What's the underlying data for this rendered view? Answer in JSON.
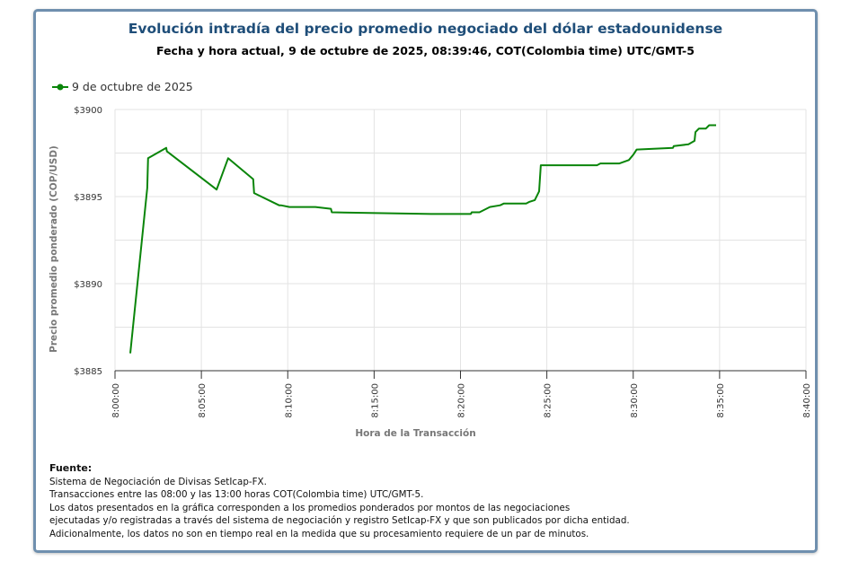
{
  "header": {
    "title": "Evolución intradía del precio promedio negociado del dólar estadounidense",
    "subtitle": "Fecha y hora actual, 9 de octubre de 2025, 08:39:46, COT(Colombia time) UTC/GMT-5"
  },
  "footer": {
    "heading": "Fuente:",
    "lines": [
      "Sistema de Negociación de Divisas SetIcap-FX.",
      "Transacciones entre las 08:00 y las 13:00 horas COT(Colombia time) UTC/GMT-5.",
      "Los datos presentados en la gráfica corresponden a los promedios ponderados por montos de las negociaciones",
      "ejecutadas y/o registradas a través del sistema de negociación y registro SetIcap-FX y que son publicados por dicha entidad.",
      "Adicionalmente, los datos no son en tiempo real en la medida que su procesamiento requiere de un par de minutos."
    ]
  },
  "chart_data": {
    "type": "line",
    "xlabel": "Hora de la Transacción",
    "ylabel": "Precio promedio ponderado (COP/USD)",
    "xlim": [
      "8:00:00",
      "8:40:00"
    ],
    "ylim": [
      3885,
      3900
    ],
    "x_ticks": [
      "8:00:00",
      "8:05:00",
      "8:10:00",
      "8:15:00",
      "8:20:00",
      "8:25:00",
      "8:30:00",
      "8:35:00",
      "8:40:00"
    ],
    "y_ticks": [
      "$3885",
      "$3890",
      "$3895",
      "$3900"
    ],
    "y_tick_values": [
      3885,
      3890,
      3895,
      3900
    ],
    "grid": true,
    "legend": "top-left",
    "colors": {
      "series": "#0a850a",
      "title": "#1f4e79",
      "frame": "#6f8fae"
    },
    "series": [
      {
        "name": "9 de octubre de 2025",
        "x": [
          "8:00:53",
          "8:01:52",
          "8:01:55",
          "8:02:58",
          "8:03:00",
          "8:05:53",
          "8:06:33",
          "8:08:00",
          "8:08:03",
          "8:09:30",
          "8:09:36",
          "8:10:06",
          "8:11:36",
          "8:12:30",
          "8:12:33",
          "8:18:18",
          "8:20:00",
          "8:20:36",
          "8:20:39",
          "8:21:06",
          "8:21:42",
          "8:22:18",
          "8:22:30",
          "8:23:48",
          "8:24:00",
          "8:24:18",
          "8:24:33",
          "8:24:39",
          "8:27:54",
          "8:28:06",
          "8:29:12",
          "8:29:45",
          "8:30:00",
          "8:30:12",
          "8:32:18",
          "8:32:21",
          "8:33:12",
          "8:33:33",
          "8:33:36",
          "8:33:48",
          "8:34:12",
          "8:34:24",
          "8:34:48"
        ],
        "y": [
          3886.0,
          3895.5,
          3897.2,
          3897.8,
          3897.6,
          3895.4,
          3897.2,
          3896.0,
          3895.2,
          3894.5,
          3894.5,
          3894.4,
          3894.4,
          3894.3,
          3894.1,
          3894.0,
          3894.0,
          3894.0,
          3894.1,
          3894.1,
          3894.4,
          3894.5,
          3894.6,
          3894.6,
          3894.7,
          3894.8,
          3895.3,
          3896.8,
          3896.8,
          3896.9,
          3896.9,
          3897.1,
          3897.4,
          3897.7,
          3897.8,
          3897.9,
          3898.0,
          3898.2,
          3898.7,
          3898.9,
          3898.9,
          3899.1,
          3899.1
        ]
      }
    ]
  }
}
